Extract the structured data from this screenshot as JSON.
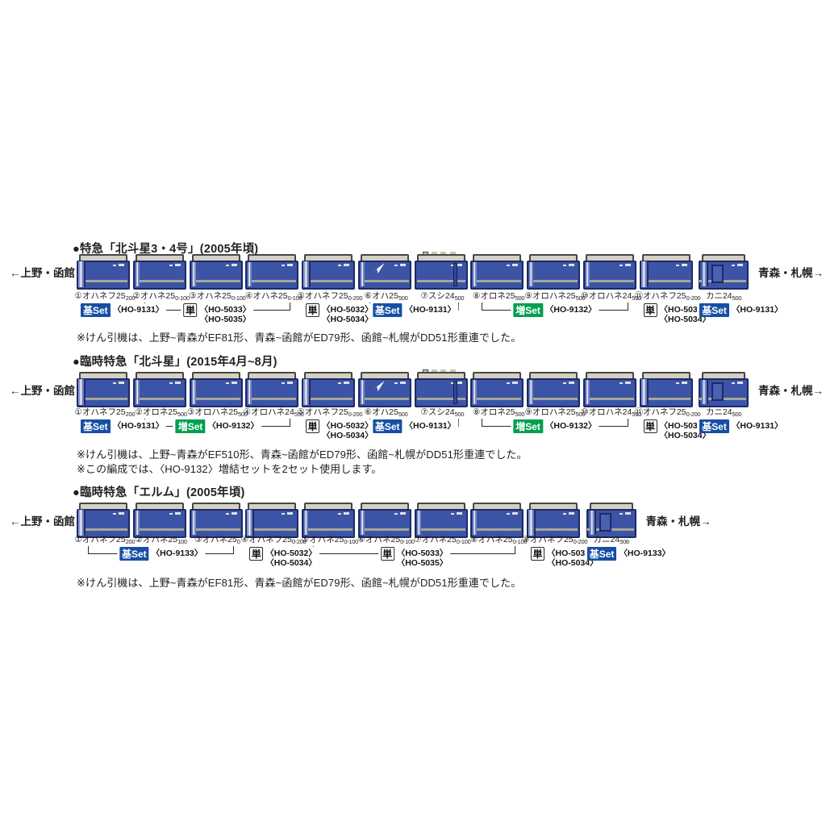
{
  "sections": [
    {
      "title": "●特急「北斗星3・4号」(2005年頃)",
      "left_label": "←上野・函館",
      "right_label": "青森・札幌→",
      "cars": [
        {
          "no": "①",
          "name": "オハネフ25",
          "sub": "200",
          "type": "end"
        },
        {
          "no": "②",
          "name": "オハネ25",
          "sub": "0-100",
          "type": "sleeper"
        },
        {
          "no": "③",
          "name": "オハネ25",
          "sub": "0-100",
          "type": "sleeper"
        },
        {
          "no": "④",
          "name": "オハネ25",
          "sub": "0-100",
          "type": "sleeper"
        },
        {
          "no": "⑤",
          "name": "オハネフ25",
          "sub": "0-200",
          "type": "end"
        },
        {
          "no": "⑥",
          "name": "オハ25",
          "sub": "500",
          "type": "lobby"
        },
        {
          "no": "⑦",
          "name": "スシ24",
          "sub": "500",
          "type": "dining"
        },
        {
          "no": "⑧",
          "name": "オロネ25",
          "sub": "500",
          "type": "sleeper"
        },
        {
          "no": "⑨",
          "name": "オロハネ25",
          "sub": "500",
          "type": "sleeper"
        },
        {
          "no": "⑩",
          "name": "オロハネ24",
          "sub": "550",
          "type": "sleeper"
        },
        {
          "no": "⑪",
          "name": "オハネフ25",
          "sub": "0-200",
          "type": "end"
        },
        {
          "no": "",
          "name": "カニ24",
          "sub": "500",
          "type": "luggage"
        }
      ],
      "assignments": [
        {
          "kind": "base",
          "label": "基Set",
          "code": "〈HO-9131〉",
          "from": 0,
          "to": 0,
          "bracket": false
        },
        {
          "kind": "single",
          "label": "単",
          "codes": [
            "〈HO-5033〉",
            "〈HO-5035〉"
          ],
          "from": 1,
          "to": 3,
          "bracket": true
        },
        {
          "kind": "single",
          "label": "単",
          "codes": [
            "〈HO-5032〉",
            "〈HO-5034〉"
          ],
          "from": 4,
          "to": 4,
          "bracket": false
        },
        {
          "kind": "base",
          "label": "基Set",
          "code": "〈HO-9131〉",
          "from": 5,
          "to": 6,
          "bracket": true
        },
        {
          "kind": "add",
          "label": "増Set",
          "code": "〈HO-9132〉",
          "from": 7,
          "to": 9,
          "bracket": true
        },
        {
          "kind": "single",
          "label": "単",
          "codes": [
            "〈HO-5032〉",
            "〈HO-5034〉"
          ],
          "from": 10,
          "to": 10,
          "bracket": false
        },
        {
          "kind": "base",
          "label": "基Set",
          "code": "〈HO-9131〉",
          "from": 11,
          "to": 11,
          "bracket": false
        }
      ],
      "notes": [
        "※けん引機は、上野~青森がEF81形、青森~函館がED79形、函館~札幌がDD51形重連でした。"
      ]
    },
    {
      "title": "●臨時特急「北斗星」(2015年4月~8月)",
      "left_label": "←上野・函館",
      "right_label": "青森・札幌→",
      "cars": [
        {
          "no": "①",
          "name": "オハネフ25",
          "sub": "200",
          "type": "end"
        },
        {
          "no": "②",
          "name": "オロネ25",
          "sub": "500",
          "type": "sleeper"
        },
        {
          "no": "③",
          "name": "オロハネ25",
          "sub": "500",
          "type": "sleeper"
        },
        {
          "no": "④",
          "name": "オロハネ24",
          "sub": "550",
          "type": "sleeper"
        },
        {
          "no": "⑤",
          "name": "オハネフ25",
          "sub": "0-200",
          "type": "end"
        },
        {
          "no": "⑥",
          "name": "オハ25",
          "sub": "500",
          "type": "lobby"
        },
        {
          "no": "⑦",
          "name": "スシ24",
          "sub": "500",
          "type": "dining"
        },
        {
          "no": "⑧",
          "name": "オロネ25",
          "sub": "500",
          "type": "sleeper"
        },
        {
          "no": "⑨",
          "name": "オロハネ25",
          "sub": "500",
          "type": "sleeper"
        },
        {
          "no": "⑩",
          "name": "オロハネ24",
          "sub": "550",
          "type": "sleeper"
        },
        {
          "no": "⑪",
          "name": "オハネフ25",
          "sub": "0-200",
          "type": "end"
        },
        {
          "no": "",
          "name": "カニ24",
          "sub": "500",
          "type": "luggage"
        }
      ],
      "assignments": [
        {
          "kind": "base",
          "label": "基Set",
          "code": "〈HO-9131〉",
          "from": 0,
          "to": 0,
          "bracket": false
        },
        {
          "kind": "add",
          "label": "増Set",
          "code": "〈HO-9132〉",
          "from": 1,
          "to": 3,
          "bracket": true
        },
        {
          "kind": "single",
          "label": "単",
          "codes": [
            "〈HO-5032〉",
            "〈HO-5034〉"
          ],
          "from": 4,
          "to": 4,
          "bracket": false
        },
        {
          "kind": "base",
          "label": "基Set",
          "code": "〈HO-9131〉",
          "from": 5,
          "to": 6,
          "bracket": true
        },
        {
          "kind": "add",
          "label": "増Set",
          "code": "〈HO-9132〉",
          "from": 7,
          "to": 9,
          "bracket": true
        },
        {
          "kind": "single",
          "label": "単",
          "codes": [
            "〈HO-5032〉",
            "〈HO-5034〉"
          ],
          "from": 10,
          "to": 10,
          "bracket": false
        },
        {
          "kind": "base",
          "label": "基Set",
          "code": "〈HO-9131〉",
          "from": 11,
          "to": 11,
          "bracket": false
        }
      ],
      "notes": [
        "※けん引機は、上野~青森がEF510形、青森~函館がED79形、函館~札幌がDD51形重連でした。",
        "※この編成では、〈HO-9132〉増結セットを2セット使用します。"
      ]
    },
    {
      "title": "●臨時特急「エルム」(2005年頃)",
      "left_label": "←上野・函館",
      "right_label": "青森・札幌→",
      "cars": [
        {
          "no": "①",
          "name": "オハネフ25",
          "sub": "200",
          "type": "end"
        },
        {
          "no": "②",
          "name": "オハネ25",
          "sub": "100",
          "type": "sleeper"
        },
        {
          "no": "③",
          "name": "オハネ25",
          "sub": "0",
          "type": "sleeper"
        },
        {
          "no": "④",
          "name": "オハネフ25",
          "sub": "0-200",
          "type": "end"
        },
        {
          "no": "⑤",
          "name": "オハネ25",
          "sub": "0-100",
          "type": "sleeper"
        },
        {
          "no": "⑥",
          "name": "オハネ25",
          "sub": "0-100",
          "type": "sleeper"
        },
        {
          "no": "⑦",
          "name": "オハネ25",
          "sub": "0-100",
          "type": "sleeper"
        },
        {
          "no": "⑧",
          "name": "オハネ25",
          "sub": "0-100",
          "type": "sleeper"
        },
        {
          "no": "⑨",
          "name": "オハネフ25",
          "sub": "0-200",
          "type": "end"
        },
        {
          "no": "",
          "name": "カニ24",
          "sub": "508",
          "type": "luggage"
        }
      ],
      "assignments": [
        {
          "kind": "base",
          "label": "基Set",
          "code": "〈HO-9133〉",
          "from": 0,
          "to": 2,
          "bracket": true
        },
        {
          "kind": "single",
          "label": "単",
          "codes": [
            "〈HO-5032〉",
            "〈HO-5034〉"
          ],
          "from": 3,
          "to": 3,
          "bracket": false
        },
        {
          "kind": "single",
          "label": "単",
          "codes": [
            "〈HO-5033〉",
            "〈HO-5035〉"
          ],
          "from": 4,
          "to": 7,
          "bracket": true
        },
        {
          "kind": "single",
          "label": "単",
          "codes": [
            "〈HO-5032〉",
            "〈HO-5034〉"
          ],
          "from": 8,
          "to": 8,
          "bracket": false
        },
        {
          "kind": "base",
          "label": "基Set",
          "code": "〈HO-9133〉",
          "from": 9,
          "to": 9,
          "bracket": false
        }
      ],
      "notes": [
        "※けん引機は、上野~青森がEF81形、青森~函館がED79形、函館~札幌がDD51形重連でした。"
      ]
    }
  ],
  "colors": {
    "car_body": "#3c54a6",
    "car_outline": "#1d2a68",
    "car_roof": "#d4d0c3",
    "car_stripe": "#a8a699",
    "base_set_bg": "#164fa5",
    "add_set_bg": "#00a04f"
  }
}
